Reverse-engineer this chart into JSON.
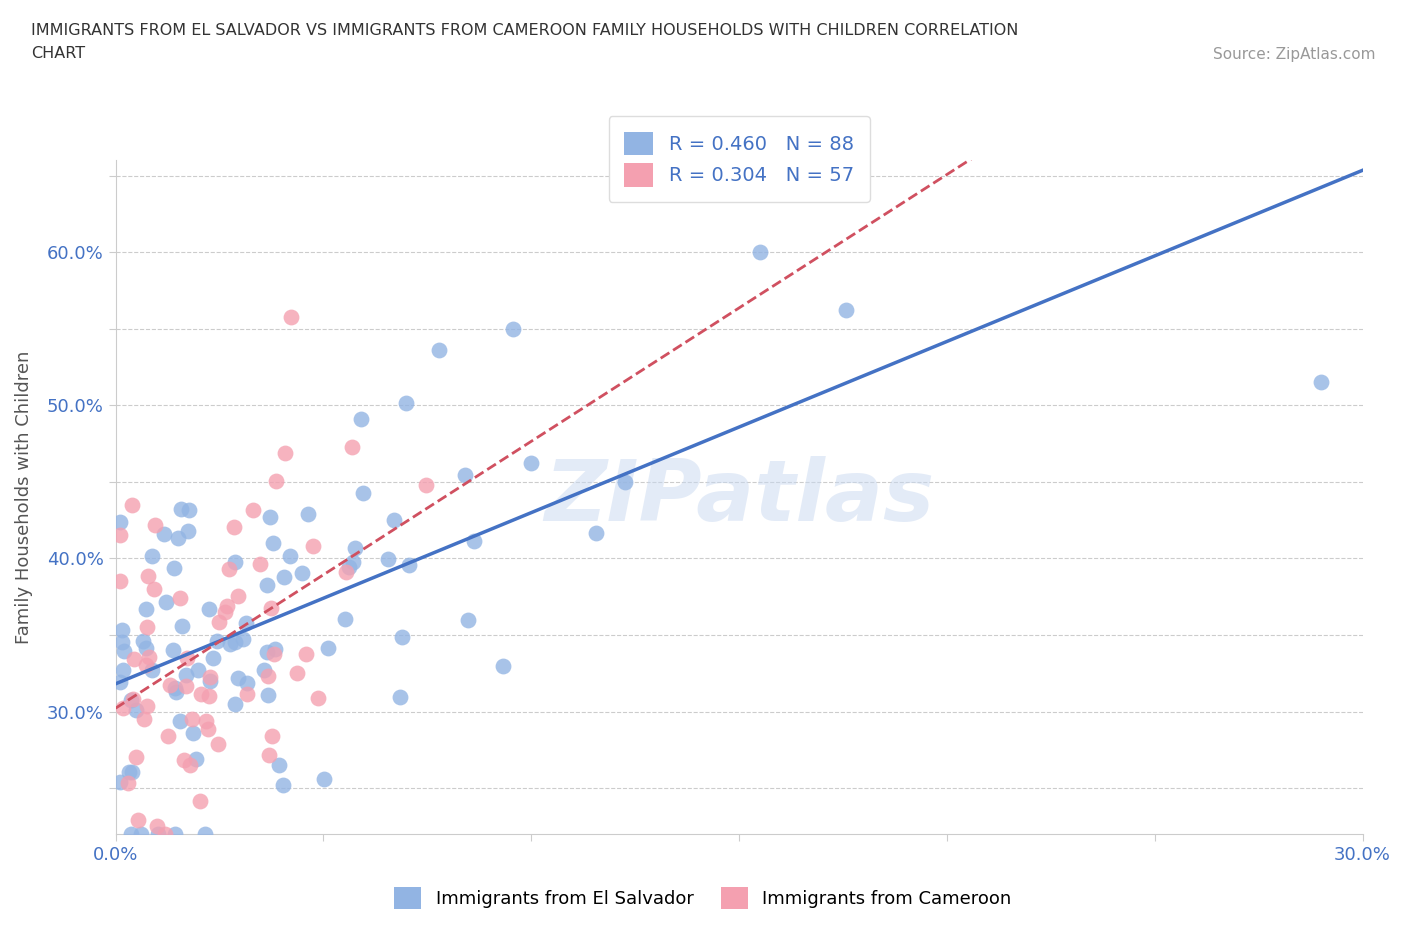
{
  "title_line1": "IMMIGRANTS FROM EL SALVADOR VS IMMIGRANTS FROM CAMEROON FAMILY HOUSEHOLDS WITH CHILDREN CORRELATION",
  "title_line2": "CHART",
  "source_text": "Source: ZipAtlas.com",
  "ylabel": "Family Households with Children",
  "xlim": [
    0.0,
    0.3
  ],
  "ylim": [
    0.22,
    0.66
  ],
  "color_salvador": "#92b4e3",
  "color_cameroon": "#f4a0b0",
  "trendline_salvador": "#4472c4",
  "trendline_cameroon": "#d05060",
  "R_salvador": 0.46,
  "N_salvador": 88,
  "R_cameroon": 0.304,
  "N_cameroon": 57,
  "legend_label_salvador": "Immigrants from El Salvador",
  "legend_label_cameroon": "Immigrants from Cameroon",
  "watermark": "ZIPatlas",
  "background_color": "#ffffff",
  "grid_color": "#cccccc",
  "title_color": "#333333",
  "axis_label_color": "#555555",
  "tick_label_color": "#4472c4"
}
